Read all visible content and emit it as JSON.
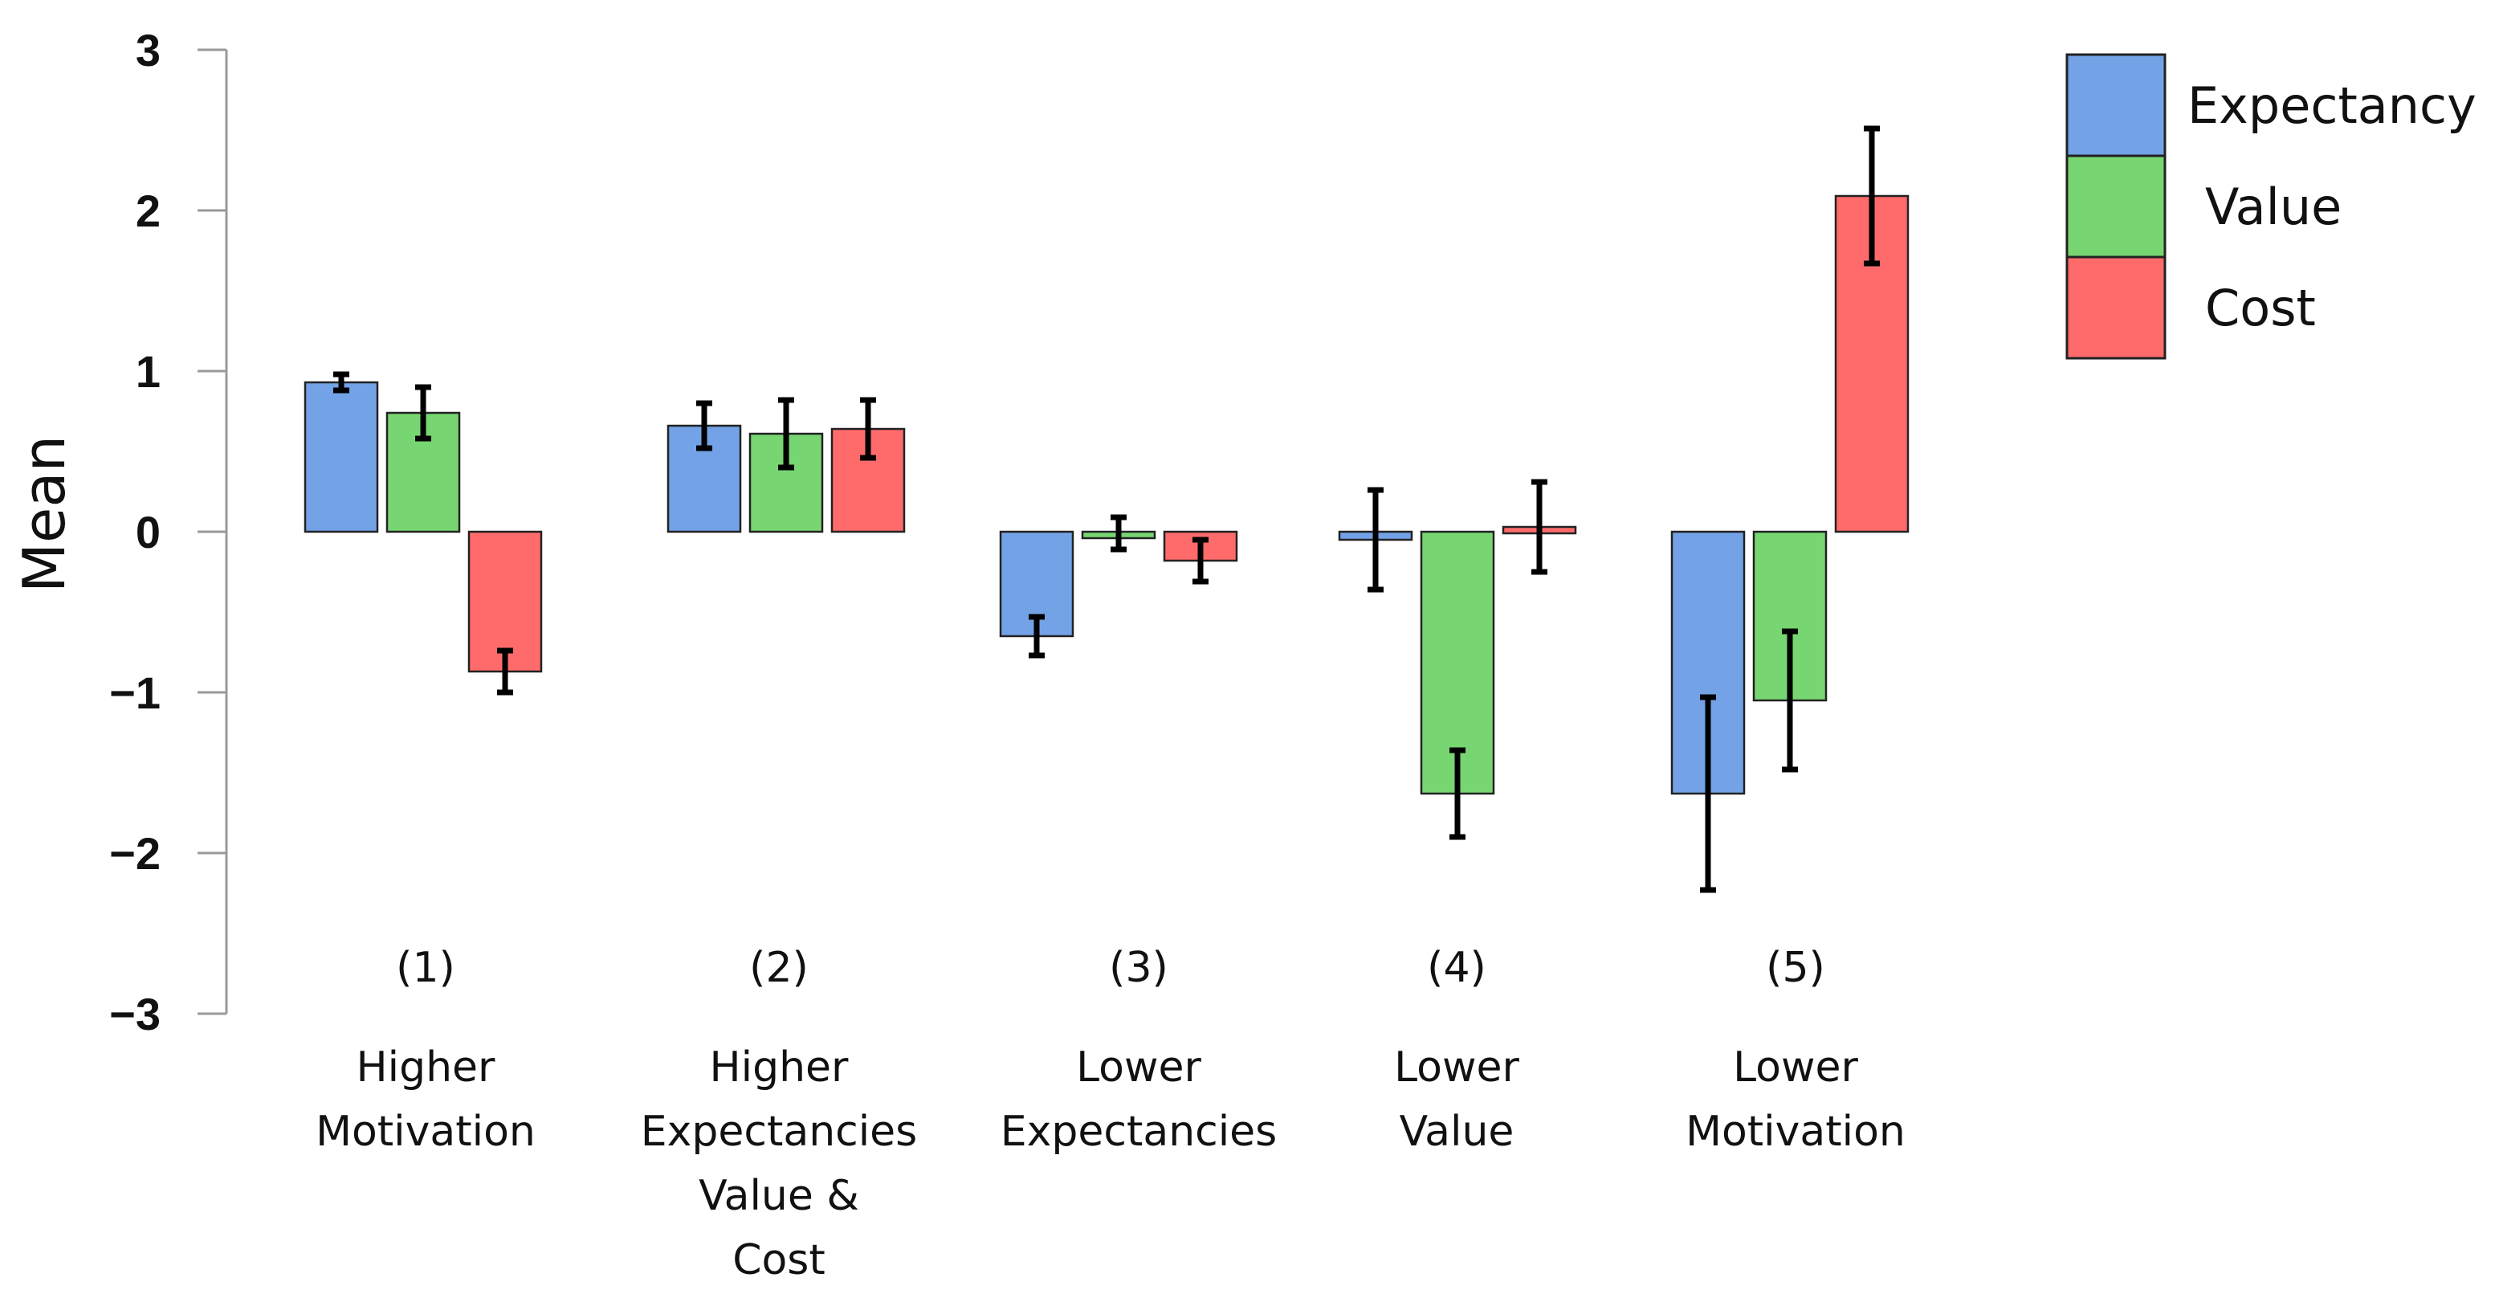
{
  "chart_data": {
    "type": "bar",
    "title": "",
    "xlabel": "",
    "ylabel": "Mean",
    "ylim": [
      -3,
      3
    ],
    "yticks": [
      3,
      2,
      1,
      0,
      -1,
      -2,
      -3
    ],
    "ytick_labels": [
      "3",
      "2",
      "1",
      "0",
      "−1",
      "−2",
      "−3"
    ],
    "categories": [
      {
        "number": "(1)",
        "lines": [
          "Higher",
          "Motivation"
        ]
      },
      {
        "number": "(2)",
        "lines": [
          "Higher",
          "Expectancies",
          "Value &",
          "Cost"
        ]
      },
      {
        "number": "(3)",
        "lines": [
          "Lower",
          "Expectancies"
        ]
      },
      {
        "number": "(4)",
        "lines": [
          "Lower",
          "Value"
        ]
      },
      {
        "number": "(5)",
        "lines": [
          "Lower",
          "Motivation"
        ]
      }
    ],
    "series": [
      {
        "name": "Expectancy",
        "color": "#73a2e6",
        "values": [
          0.93,
          0.66,
          -0.65,
          -0.05,
          -1.63
        ],
        "errors": [
          0.05,
          0.14,
          0.12,
          0.31,
          0.6
        ]
      },
      {
        "name": "Value",
        "color": "#77d671",
        "values": [
          0.74,
          0.61,
          -0.01,
          -1.63,
          -1.05
        ],
        "errors": [
          0.16,
          0.21,
          0.1,
          0.27,
          0.43
        ]
      },
      {
        "name": "Cost",
        "color": "#ff6b6b",
        "values": [
          -0.87,
          0.64,
          -0.18,
          0.03,
          2.09
        ],
        "errors": [
          0.13,
          0.18,
          0.13,
          0.28,
          0.42
        ]
      }
    ],
    "legend": {
      "position": "top-right"
    },
    "grid": false
  }
}
